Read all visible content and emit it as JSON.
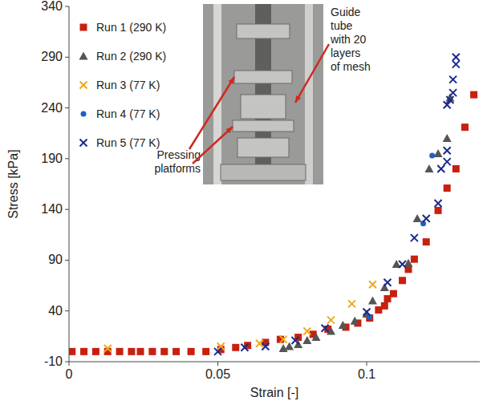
{
  "chart_data": {
    "type": "scatter",
    "x_label": "Strain [-]",
    "y_label": "Stress [kPa]",
    "xlim": [
      0,
      0.138
    ],
    "xticks": [
      0,
      0.05,
      0.1
    ],
    "ylim": [
      -10,
      340
    ],
    "yticks": [
      -10,
      40,
      90,
      140,
      190,
      240,
      290,
      340
    ],
    "grid": false,
    "legend": "upper left",
    "annotations": [
      {
        "lines": [
          "Pressing",
          "platforms"
        ]
      },
      {
        "lines": [
          "Guide",
          "tube",
          "with 20",
          "layers",
          "of mesh"
        ]
      }
    ],
    "series": [
      {
        "name": "Run 1 (290 K)",
        "color": "#c8200e",
        "marker": "square",
        "x": [
          0.001,
          0.005,
          0.009,
          0.013,
          0.017,
          0.021,
          0.024,
          0.028,
          0.032,
          0.036,
          0.041,
          0.046,
          0.051,
          0.056,
          0.06,
          0.066,
          0.071,
          0.077,
          0.082,
          0.087,
          0.093,
          0.097,
          0.101,
          0.104,
          0.106,
          0.107,
          0.109,
          0.112,
          0.114,
          0.116,
          0.12,
          0.124,
          0.127,
          0.13,
          0.133,
          0.136
        ],
        "values": [
          0,
          0,
          0,
          0,
          0,
          0,
          0,
          0,
          0,
          0,
          0,
          0,
          2,
          4,
          6,
          9,
          12,
          14,
          17,
          22,
          24,
          28,
          33,
          41,
          45,
          52,
          57,
          70,
          81,
          91,
          108,
          139,
          161,
          180,
          221,
          253
        ]
      },
      {
        "name": "Run 2 (290 K)",
        "color": "#555555",
        "marker": "triangle",
        "x": [
          0.072,
          0.074,
          0.077,
          0.08,
          0.083,
          0.088,
          0.092,
          0.096,
          0.1,
          0.102,
          0.106,
          0.11,
          0.114,
          0.117,
          0.121,
          0.124,
          0.127,
          0.128
        ],
        "values": [
          3,
          5,
          7,
          11,
          14,
          20,
          26,
          30,
          37,
          50,
          63,
          86,
          87,
          131,
          180,
          195,
          210,
          250
        ]
      },
      {
        "name": "Run 3 (77 K)",
        "color": "#f0a81c",
        "marker": "x",
        "x": [
          0.013,
          0.051,
          0.064,
          0.072,
          0.08,
          0.088,
          0.095,
          0.102
        ],
        "values": [
          3,
          5,
          8,
          12,
          20,
          31,
          47,
          66
        ]
      },
      {
        "name": "Run 4 (77 K)",
        "color": "#1f5fbf",
        "marker": "circle",
        "x": [
          0.101,
          0.119,
          0.122
        ],
        "values": [
          34,
          126,
          193
        ]
      },
      {
        "name": "Run 5 (77 K)",
        "color": "#1a2a8c",
        "marker": "x",
        "x": [
          0.05,
          0.059,
          0.066,
          0.076,
          0.086,
          0.1,
          0.107,
          0.112,
          0.116,
          0.12,
          0.124,
          0.125,
          0.127,
          0.127,
          0.127,
          0.128,
          0.129,
          0.129,
          0.13,
          0.13
        ],
        "values": [
          0,
          4,
          5,
          11,
          23,
          39,
          68,
          86,
          112,
          131,
          146,
          180,
          187,
          198,
          243,
          248,
          255,
          268,
          283,
          290
        ]
      }
    ]
  }
}
